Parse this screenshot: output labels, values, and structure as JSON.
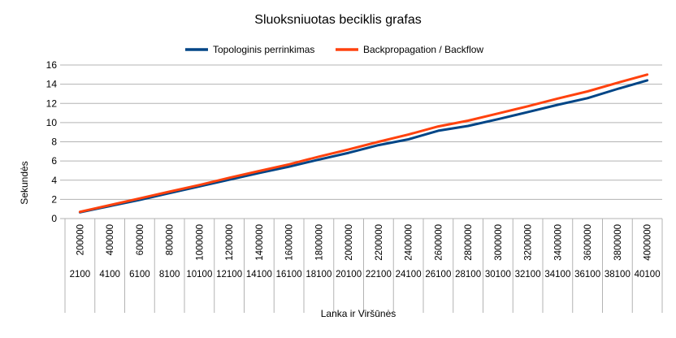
{
  "chart_data": {
    "type": "line",
    "title": "Sluoksniuotas beciklis grafas",
    "xlabel": "Lanka ir Viršūnės",
    "ylabel": "Sekundės",
    "ylim": [
      0,
      16
    ],
    "yticks": [
      "0",
      "2",
      "4",
      "6",
      "8",
      "10",
      "12",
      "14",
      "16"
    ],
    "grid": "horizontal",
    "legend_position": "top",
    "categories_edges": [
      "200000",
      "400000",
      "600000",
      "800000",
      "1000000",
      "1200000",
      "1400000",
      "1600000",
      "1800000",
      "2000000",
      "2200000",
      "2400000",
      "2600000",
      "2800000",
      "3000000",
      "3200000",
      "3400000",
      "3600000",
      "3800000",
      "4000000"
    ],
    "categories_vertices": [
      "2100",
      "4100",
      "6100",
      "8100",
      "10100",
      "12100",
      "14100",
      "16100",
      "18100",
      "20100",
      "22100",
      "24100",
      "26100",
      "28100",
      "30100",
      "32100",
      "34100",
      "36100",
      "38100",
      "40100"
    ],
    "series": [
      {
        "name": "Topologinis perrinkimas",
        "color": "#004586",
        "values": [
          0.65,
          1.3,
          1.95,
          2.65,
          3.35,
          4.05,
          4.75,
          5.4,
          6.15,
          6.85,
          7.65,
          8.25,
          9.15,
          9.65,
          10.35,
          11.1,
          11.85,
          12.55,
          13.5,
          14.4
        ]
      },
      {
        "name": "Backpropagation / Backflow",
        "color": "#ff420e",
        "values": [
          0.7,
          1.4,
          2.1,
          2.8,
          3.5,
          4.25,
          4.95,
          5.65,
          6.45,
          7.2,
          8.0,
          8.75,
          9.6,
          10.2,
          10.95,
          11.7,
          12.5,
          13.25,
          14.15,
          15.0
        ]
      }
    ]
  }
}
